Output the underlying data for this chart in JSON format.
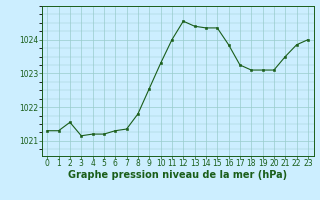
{
  "x": [
    0,
    1,
    2,
    3,
    4,
    5,
    6,
    7,
    8,
    9,
    10,
    11,
    12,
    13,
    14,
    15,
    16,
    17,
    18,
    19,
    20,
    21,
    22,
    23
  ],
  "y": [
    1021.3,
    1021.3,
    1021.55,
    1021.15,
    1021.2,
    1021.2,
    1021.3,
    1021.35,
    1021.8,
    1022.55,
    1023.3,
    1024.0,
    1024.55,
    1024.4,
    1024.35,
    1024.35,
    1023.85,
    1023.25,
    1023.1,
    1023.1,
    1023.1,
    1023.5,
    1023.85,
    1024.0
  ],
  "bg_color": "#cceeff",
  "line_color": "#1a5e1a",
  "marker_color": "#1a5e1a",
  "grid_color": "#99cccc",
  "ylabel_ticks": [
    1021,
    1022,
    1023,
    1024
  ],
  "xlabel_ticks": [
    0,
    1,
    2,
    3,
    4,
    5,
    6,
    7,
    8,
    9,
    10,
    11,
    12,
    13,
    14,
    15,
    16,
    17,
    18,
    19,
    20,
    21,
    22,
    23
  ],
  "ylim": [
    1020.55,
    1025.0
  ],
  "xlim": [
    -0.5,
    23.5
  ],
  "xlabel": "Graphe pression niveau de la mer (hPa)",
  "tick_fontsize": 5.5,
  "label_fontsize": 7.0
}
